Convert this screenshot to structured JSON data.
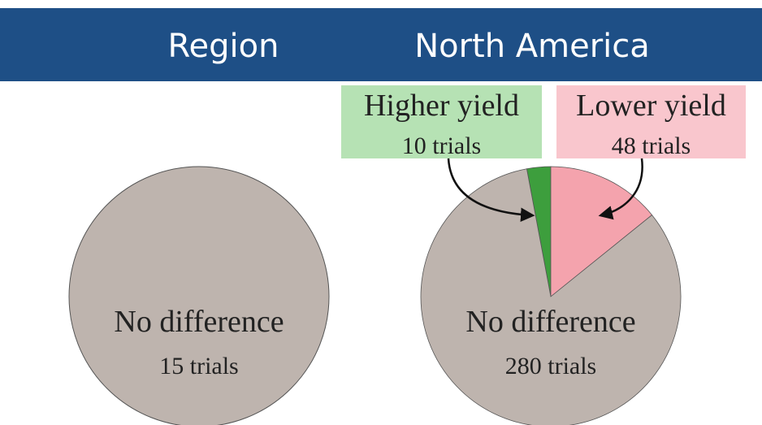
{
  "chart_data": [
    {
      "type": "pie",
      "title": "Region",
      "categories": [
        "No difference"
      ],
      "values": [
        15
      ],
      "value_labels": [
        "15 trials"
      ],
      "colors": [
        "#beb4ae"
      ]
    },
    {
      "type": "pie",
      "title": "North America",
      "categories": [
        "Higher yield",
        "Lower yield",
        "No difference"
      ],
      "values": [
        10,
        48,
        280
      ],
      "value_labels": [
        "10 trials",
        "48 trials",
        "280 trials"
      ],
      "colors": [
        "#3d9e3d",
        "#f4a3ad",
        "#beb4ae"
      ]
    }
  ]
}
